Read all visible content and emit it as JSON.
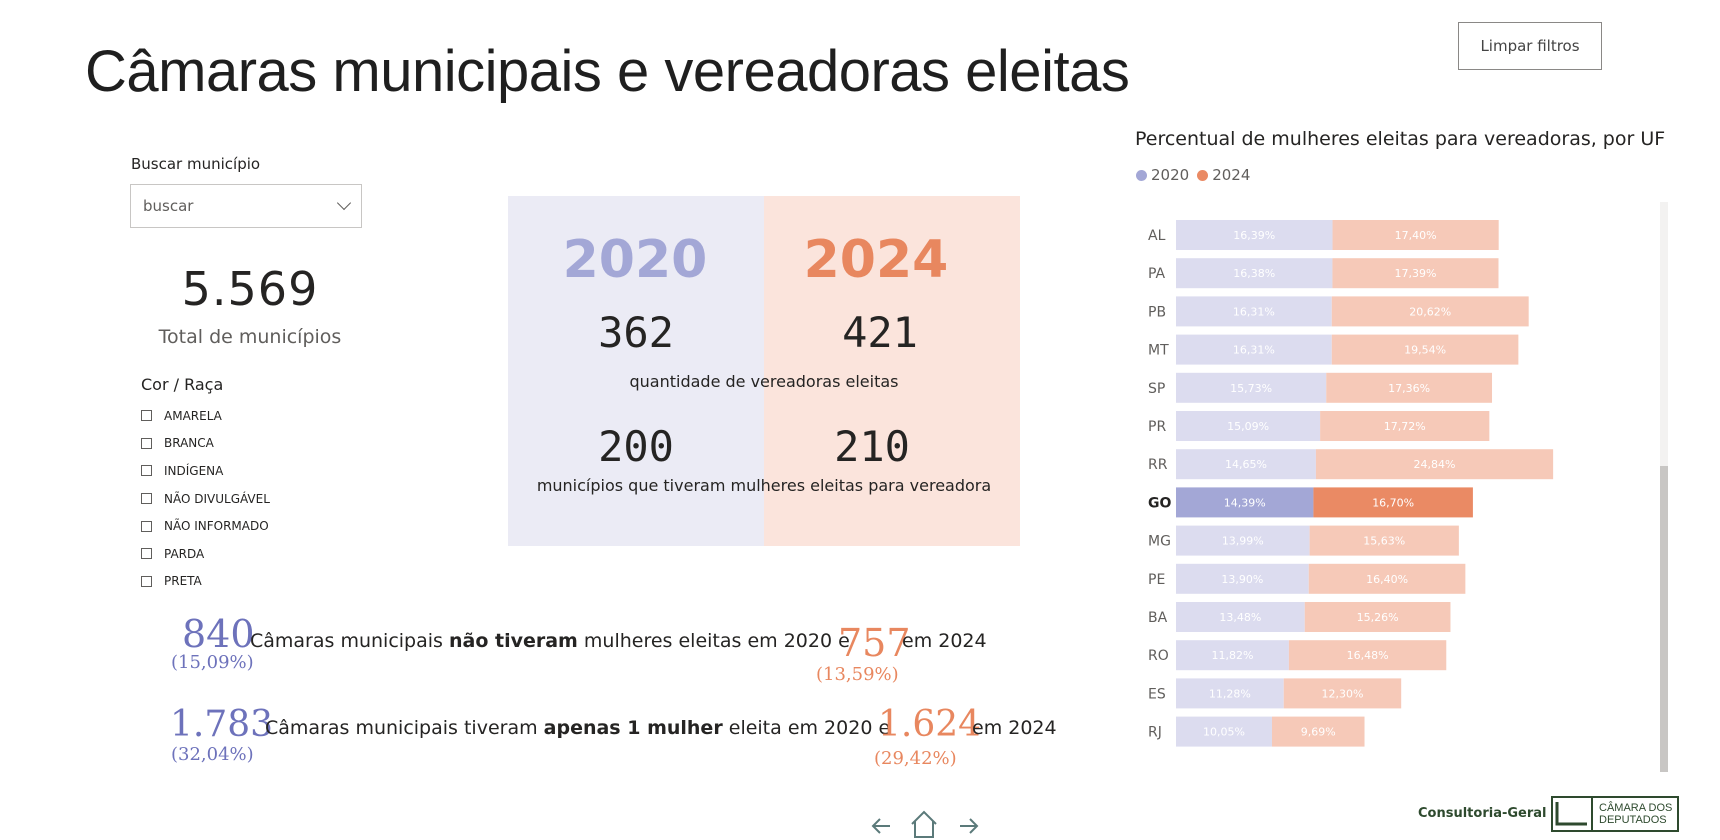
{
  "page": {
    "title": "Câmaras municipais e vereadoras eleitas",
    "clear_filters": "Limpar filtros"
  },
  "search": {
    "label": "Buscar município",
    "placeholder": "buscar"
  },
  "total": {
    "value": "5.569",
    "label": "Total de municípios"
  },
  "race_filter": {
    "title": "Cor / Raça",
    "options": [
      "AMARELA",
      "BRANCA",
      "INDÍGENA",
      "NÃO DIVULGÁVEL",
      "NÃO INFORMADO",
      "PARDA",
      "PRETA"
    ]
  },
  "comparison": {
    "year_2020": "2020",
    "year_2024": "2024",
    "councilwomen_2020": "362",
    "councilwomen_2024": "421",
    "councilwomen_label": "quantidade de vereadoras eleitas",
    "municipalities_2020": "200",
    "municipalities_2024": "210",
    "municipalities_label": "municípios que tiveram mulheres eleitas para vereadora"
  },
  "stats": {
    "none": {
      "num_2020": "840",
      "pct_2020": "(15,09%)",
      "text_a": "Câmaras municipais",
      "text_bold": "não tiveram",
      "text_b": "mulheres eleitas em 2020 e",
      "num_2024": "757",
      "pct_2024": "(13,59%)",
      "text_c": "em 2024"
    },
    "one": {
      "num_2020": "1.783",
      "pct_2020": "(32,04%)",
      "text_a": "Câmaras municipais tiveram",
      "text_bold": "apenas 1 mulher",
      "text_b": "eleita em 2020 e",
      "num_2024": "1.624",
      "pct_2024": "(29,42%)",
      "text_c": "em 2024"
    }
  },
  "chart_data": {
    "type": "bar",
    "orientation": "horizontal-stacked",
    "title": "Percentual de mulheres eleitas para vereadoras, por UF",
    "categories": [
      "AL",
      "PA",
      "PB",
      "MT",
      "SP",
      "PR",
      "RR",
      "GO",
      "MG",
      "PE",
      "BA",
      "RO",
      "ES",
      "RJ"
    ],
    "highlight": "GO",
    "series": [
      {
        "name": "2020",
        "color": "#a3a7d6",
        "light_color": "#dcdcef",
        "values": [
          16.39,
          16.38,
          16.31,
          16.31,
          15.73,
          15.09,
          14.65,
          14.39,
          13.99,
          13.9,
          13.48,
          11.82,
          11.28,
          10.05
        ],
        "labels": [
          "16,39%",
          "16,38%",
          "16,31%",
          "16,31%",
          "15,73%",
          "15,09%",
          "14,65%",
          "14,39%",
          "13,99%",
          "13,90%",
          "13,48%",
          "11,82%",
          "11,28%",
          "10,05%"
        ]
      },
      {
        "name": "2024",
        "color": "#ea8a64",
        "light_color": "#f6c9b8",
        "values": [
          17.4,
          17.39,
          20.62,
          19.54,
          17.36,
          17.72,
          24.84,
          16.7,
          15.63,
          16.4,
          15.26,
          16.48,
          12.3,
          9.69
        ],
        "labels": [
          "17,40%",
          "17,39%",
          "20,62%",
          "19,54%",
          "17,36%",
          "17,72%",
          "24,84%",
          "16,70%",
          "15,63%",
          "16,40%",
          "15,26%",
          "16,48%",
          "12,30%",
          "9,69%"
        ]
      }
    ],
    "legend": "top-left"
  },
  "footer": {
    "brand": "Consultoria-Geral",
    "logo_line1": "CÂMARA DOS",
    "logo_line2": "DEPUTADOS",
    "nav_icons": [
      "arrow-left-icon",
      "home-icon",
      "arrow-right-icon"
    ]
  }
}
